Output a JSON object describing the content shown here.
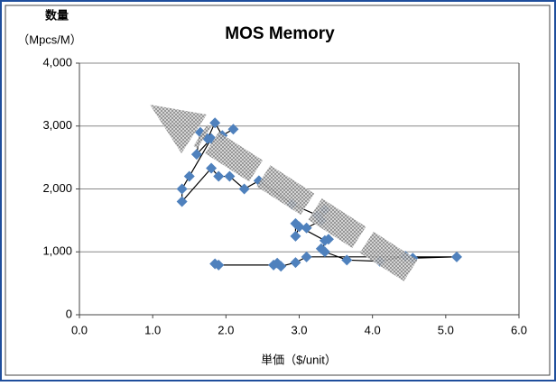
{
  "chart_data": {
    "type": "scatter",
    "title": "MOS Memory",
    "ylabel": [
      "数量",
      "（Mpcs/M）"
    ],
    "xlabel": "単価（$/unit）",
    "x": [
      2.1,
      1.95,
      1.85,
      1.75,
      1.65,
      1.6,
      1.8,
      1.5,
      1.4,
      1.4,
      1.8,
      1.9,
      2.05,
      2.25,
      2.45,
      2.9,
      3.25,
      3.35,
      3.3,
      3.1,
      2.95,
      2.95,
      3.0,
      3.35,
      3.4,
      3.3,
      3.35,
      3.65,
      4.1,
      4.45,
      4.55,
      5.15,
      3.1,
      2.95,
      2.75,
      2.7,
      2.65,
      1.9,
      1.85
    ],
    "values": [
      2950,
      2850,
      3050,
      2800,
      2900,
      2550,
      2800,
      2200,
      2000,
      1800,
      2330,
      2200,
      2200,
      2000,
      2130,
      1760,
      1580,
      1670,
      1500,
      1380,
      1450,
      1250,
      1400,
      1180,
      1200,
      1050,
      1000,
      870,
      850,
      930,
      900,
      920,
      920,
      830,
      770,
      820,
      790,
      790,
      810
    ],
    "color": "#4f81bd",
    "line_color": "#000000",
    "xlim": [
      0,
      6
    ],
    "xticks": [
      {
        "value": 0,
        "label": "0.0"
      },
      {
        "value": 1,
        "label": "1.0"
      },
      {
        "value": 2,
        "label": "2.0"
      },
      {
        "value": 3,
        "label": "3.0"
      },
      {
        "value": 4,
        "label": "4.0"
      },
      {
        "value": 5,
        "label": "5.0"
      },
      {
        "value": 6,
        "label": "6.0"
      }
    ],
    "ylim": [
      0,
      4000
    ],
    "yticks": [
      0,
      {
        "value": 1000,
        "label": "1,000"
      },
      {
        "value": 2000,
        "label": "2,000"
      },
      {
        "value": 3000,
        "label": "3,000"
      },
      {
        "value": 4000,
        "label": "4,000"
      }
    ],
    "grid": true
  }
}
